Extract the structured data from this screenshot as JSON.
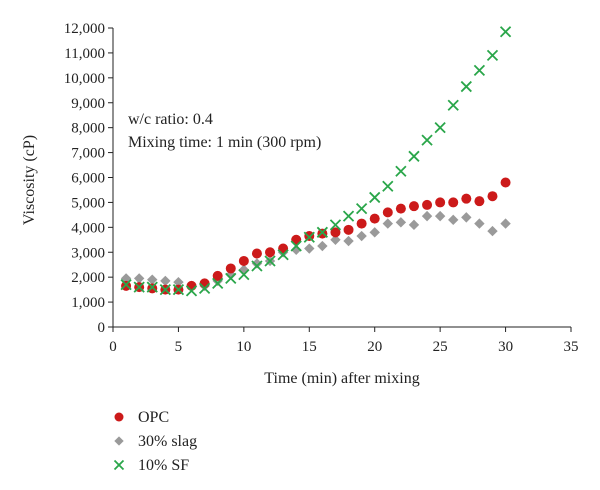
{
  "chart_data": {
    "type": "scatter",
    "xlabel": "Time (min) after mixing",
    "ylabel": "Viscosity (cP)",
    "xlim": [
      0,
      35
    ],
    "ylim": [
      0,
      12000
    ],
    "x_ticks": [
      "0",
      "5",
      "10",
      "15",
      "20",
      "25",
      "30",
      "35"
    ],
    "y_ticks": [
      "0",
      "1,000",
      "2,000",
      "3,000",
      "4,000",
      "5,000",
      "6,000",
      "7,000",
      "8,000",
      "9,000",
      "10,000",
      "11,000",
      "12,000"
    ],
    "grid": false,
    "legend_position": "bottom-left",
    "annotations": [
      "w/c ratio: 0.4",
      "Mixing time: 1 min (300 rpm)"
    ],
    "series": [
      {
        "name": "OPC",
        "marker": "circle",
        "color": "#cc1a1a",
        "x": [
          1,
          2,
          3,
          4,
          5,
          6,
          7,
          8,
          9,
          10,
          11,
          12,
          13,
          14,
          15,
          16,
          17,
          18,
          19,
          20,
          21,
          22,
          23,
          24,
          25,
          26,
          27,
          28,
          29,
          30
        ],
        "y": [
          1650,
          1600,
          1550,
          1500,
          1500,
          1650,
          1750,
          2050,
          2350,
          2650,
          2950,
          3000,
          3150,
          3500,
          3650,
          3750,
          3800,
          3900,
          4150,
          4350,
          4600,
          4750,
          4850,
          4900,
          5000,
          5000,
          5150,
          5050,
          5250,
          5800
        ]
      },
      {
        "name": "30% slag",
        "marker": "diamond",
        "color": "#9a9a9a",
        "x": [
          1,
          2,
          3,
          4,
          5,
          6,
          7,
          8,
          9,
          10,
          11,
          12,
          13,
          14,
          15,
          16,
          17,
          18,
          19,
          20,
          21,
          22,
          23,
          24,
          25,
          26,
          27,
          28,
          29,
          30
        ],
        "y": [
          1950,
          1950,
          1900,
          1850,
          1800,
          1650,
          1650,
          1850,
          2100,
          2300,
          2550,
          2650,
          3000,
          3100,
          3150,
          3250,
          3500,
          3450,
          3650,
          3800,
          4150,
          4200,
          4100,
          4450,
          4450,
          4300,
          4400,
          4150,
          3850,
          4150
        ]
      },
      {
        "name": "10% SF",
        "marker": "x",
        "color": "#2aa64a",
        "x": [
          1,
          2,
          3,
          4,
          5,
          6,
          7,
          8,
          9,
          10,
          11,
          12,
          13,
          14,
          15,
          16,
          17,
          18,
          19,
          20,
          21,
          22,
          23,
          24,
          25,
          26,
          27,
          28,
          29,
          30
        ],
        "y": [
          1700,
          1600,
          1600,
          1500,
          1500,
          1450,
          1550,
          1750,
          1950,
          2100,
          2450,
          2650,
          2900,
          3250,
          3600,
          3800,
          4100,
          4450,
          4750,
          5200,
          5650,
          6250,
          6850,
          7500,
          8000,
          8900,
          9650,
          10300,
          10900,
          11850
        ]
      }
    ]
  }
}
